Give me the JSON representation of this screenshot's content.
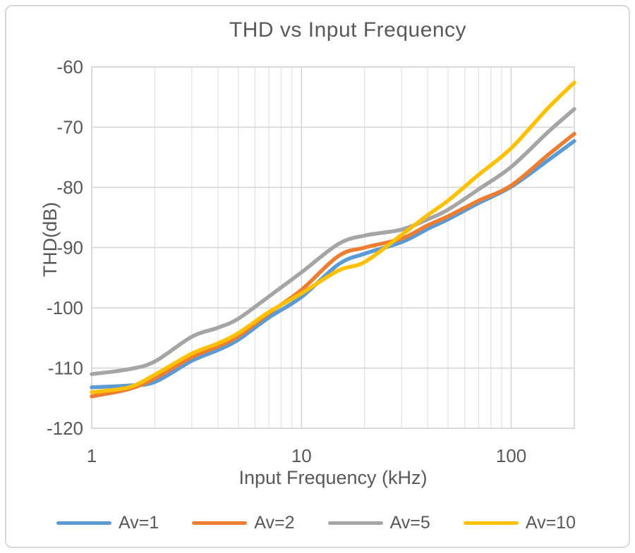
{
  "chart_data": {
    "type": "line",
    "title": "THD vs Input Frequency",
    "xlabel": "Input Frequency  (kHz)",
    "ylabel": "THD(dB)",
    "x_scale": "log",
    "xlim": [
      1,
      200
    ],
    "ylim": [
      -120,
      -60
    ],
    "grid": true,
    "legend_position": "bottom",
    "x_major_ticks": [
      {
        "value": 1,
        "label": "1"
      },
      {
        "value": 10,
        "label": "10"
      },
      {
        "value": 100,
        "label": "100"
      }
    ],
    "x_minor_gridlines": [
      2,
      3,
      4,
      5,
      6,
      7,
      8,
      9,
      20,
      30,
      40,
      50,
      60,
      70,
      80,
      90,
      200
    ],
    "y_ticks": [
      {
        "value": -60,
        "label": "-60"
      },
      {
        "value": -70,
        "label": "-70"
      },
      {
        "value": -80,
        "label": "-80"
      },
      {
        "value": -90,
        "label": "-90"
      },
      {
        "value": -100,
        "label": "-100"
      },
      {
        "value": -110,
        "label": "-110"
      },
      {
        "value": -120,
        "label": "-120"
      }
    ],
    "x": [
      1,
      1.5,
      2,
      3,
      4,
      5,
      7,
      10,
      15,
      20,
      30,
      40,
      50,
      70,
      100,
      150,
      200
    ],
    "series": [
      {
        "name": "Av=1",
        "color": "#5B9BD5",
        "values": [
          -113.2,
          -112.9,
          -112.3,
          -108.8,
          -107.0,
          -105.3,
          -101.6,
          -98.2,
          -92.8,
          -91.0,
          -89.1,
          -86.9,
          -85.3,
          -82.6,
          -79.9,
          -75.5,
          -72.3
        ]
      },
      {
        "name": "Av=2",
        "color": "#ED7D31",
        "values": [
          -114.7,
          -113.5,
          -111.7,
          -108.2,
          -106.4,
          -104.7,
          -100.9,
          -97.0,
          -91.4,
          -90.0,
          -88.5,
          -86.3,
          -84.8,
          -82.2,
          -79.7,
          -74.6,
          -71.1
        ]
      },
      {
        "name": "Av=5",
        "color": "#A5A5A5",
        "values": [
          -111.0,
          -110.2,
          -108.9,
          -104.8,
          -103.3,
          -101.8,
          -98.1,
          -94.1,
          -89.4,
          -88.0,
          -87.0,
          -85.3,
          -83.7,
          -80.3,
          -76.6,
          -70.8,
          -67.0
        ]
      },
      {
        "name": "Av=10",
        "color": "#FFC000",
        "values": [
          -114.0,
          -113.2,
          -111.1,
          -107.6,
          -105.9,
          -104.2,
          -100.7,
          -97.6,
          -93.8,
          -92.4,
          -87.9,
          -84.6,
          -82.2,
          -77.9,
          -73.5,
          -66.8,
          -62.6
        ]
      }
    ],
    "colors": {
      "text": "#595959",
      "gridline_major": "#D5D5D5",
      "gridline_minor": "#E5E5E5",
      "plot_border": "#D9D9D9",
      "chart_frame": "#D9D9D9"
    }
  }
}
